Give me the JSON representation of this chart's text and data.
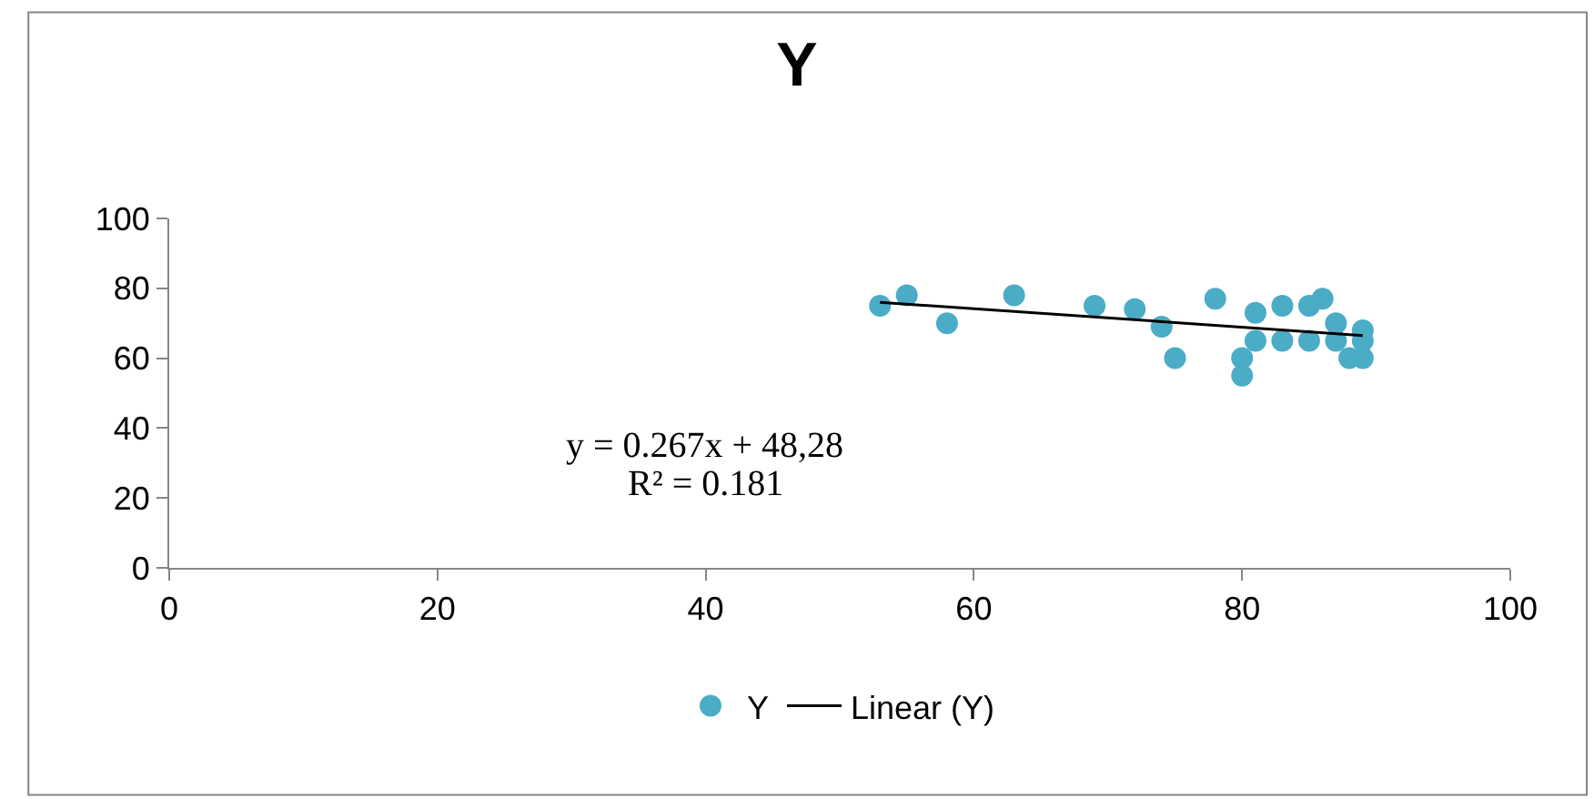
{
  "chart_data": {
    "type": "scatter",
    "title": "Y",
    "series": [
      {
        "name": "Y",
        "color": "#4bacc6",
        "marker": "circle",
        "x": [
          53,
          55,
          58,
          63,
          69,
          72,
          74,
          75,
          78,
          80,
          80,
          81,
          81,
          83,
          83,
          85,
          85,
          86,
          87,
          87,
          88,
          89,
          89,
          89
        ],
        "values": [
          75,
          78,
          70,
          78,
          75,
          74,
          69,
          60,
          77,
          60,
          55,
          73,
          65,
          75,
          65,
          75,
          65,
          77,
          70,
          65,
          60,
          68,
          65,
          60
        ]
      },
      {
        "name": "Linear (Y)",
        "type": "line",
        "color": "#000000",
        "marker": "none",
        "line_style": "solid",
        "x": [
          53,
          89
        ],
        "values": [
          76,
          66.5
        ]
      }
    ],
    "annotations": [
      "y = 0.267x + 48,28",
      "R² = 0.181"
    ],
    "xlim": [
      0,
      100
    ],
    "xticks": [
      0,
      20,
      40,
      60,
      80,
      100
    ],
    "ylim": [
      0,
      100
    ],
    "yticks": [
      0,
      20,
      40,
      60,
      80,
      100
    ],
    "grid": false,
    "legend": "bottom"
  }
}
